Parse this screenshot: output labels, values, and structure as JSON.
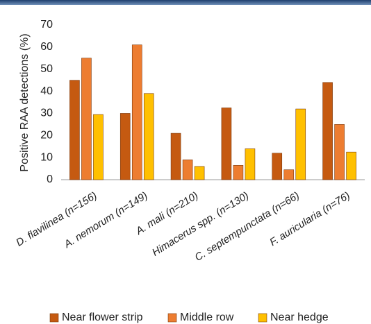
{
  "chart_data": {
    "type": "bar",
    "y_label": "Positive RAA detections (%)",
    "categories": [
      "D. flavilinea (n=156)",
      "A. nemorum (n=149)",
      "A. mali (n=210)",
      "Himacerus spp. (n=130)",
      "C. septempunctata (n=66)",
      "F. auricularia (n=76)"
    ],
    "series": [
      {
        "name": "Near flower strip",
        "color": "#c55a11",
        "values": [
          45,
          30,
          21,
          32.5,
          12,
          44
        ]
      },
      {
        "name": "Middle row",
        "color": "#ed7d31",
        "values": [
          55,
          61,
          9,
          6.5,
          4.5,
          25
        ]
      },
      {
        "name": "Near hedge",
        "color": "#ffc000",
        "values": [
          29.5,
          39,
          6,
          14,
          32,
          12.5
        ]
      }
    ],
    "ylim": [
      0,
      70
    ],
    "yticks": [
      0,
      10,
      20,
      30,
      40,
      50,
      60,
      70
    ],
    "grid": false,
    "legend": "bottom"
  }
}
